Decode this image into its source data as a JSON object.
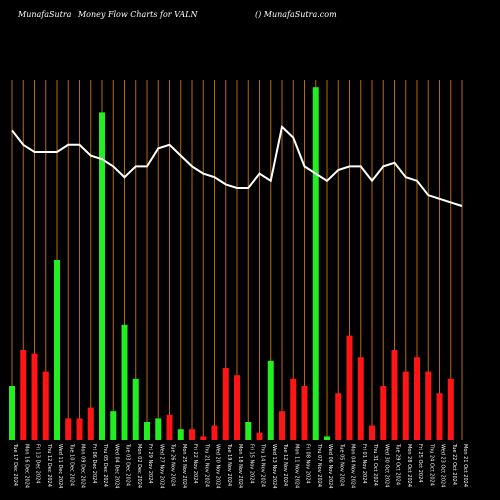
{
  "header": {
    "brand": "MunafaSutra",
    "chart_name": "Money Flow  Charts for VALN",
    "right_text": "() MunafaSutra.com"
  },
  "colors": {
    "background": "#000000",
    "grid": "#b8690a",
    "up": "#22ee22",
    "down": "#ff1515",
    "line": "#ffffff"
  },
  "chart_data": {
    "type": "bar",
    "title": "",
    "xlabel": "",
    "ylabel": "",
    "grid": true,
    "categories": [
      "Tue 17 Dec",
      "Mon 16 Dec",
      "Fri 13 Dec",
      "Thu 12 Dec",
      "Wed 11 Dec",
      "Tue 10 Dec",
      "Mon 09 Dec",
      "Fri 06 Dec",
      "Thu 05 Dec",
      "Wed 04 Dec",
      "Tue 03 Dec",
      "Mon 02 Dec",
      "Fri 29 Nov",
      "Wed 27 Nov",
      "Tue 26 Nov",
      "Mon 25 Nov",
      "Fri 22 Nov",
      "Thu 21 Nov",
      "Wed 20 Nov",
      "Tue 19 Nov",
      "Mon 18 Nov",
      "Fri 15 Nov",
      "Thu 14 Nov",
      "Wed 13 Nov",
      "Tue 12 Nov",
      "Mon 11 Nov",
      "Fri 08 Nov",
      "Thu 07 Nov",
      "Wed 06 Nov",
      "Tue 05 Nov",
      "Mon 04 Nov",
      "Fri 01 Nov",
      "Thu 31 Oct",
      "Wed 30 Oct",
      "Tue 29 Oct",
      "Mon 28 Oct",
      "Fri 25 Oct",
      "Thu 24 Oct",
      "Wed 23 Oct",
      "Tue 22 Oct",
      "Mon 21 Oct"
    ],
    "tick_labels": [
      "Tue 17 Dec 2024",
      "Mon 16 Dec 2024",
      "Fri 13 Dec 2024",
      "Thu 12 Dec 2024",
      "Wed 11 Dec 2024",
      "Tue 10 Dec 2024",
      "Mon 09 Dec 2024",
      "Fri 06 Dec 2024",
      "Thu 05 Dec 2024",
      "Wed 04 Dec 2024",
      "Tue 03 Dec 2024",
      "Mon 02 Dec 2024",
      "Fri 29 Nov 2024",
      "Wed 27 Nov 2024",
      "Tue 26 Nov 2024",
      "Mon 25 Nov 2024",
      "Fri 22 Nov 2024",
      "Thu 21 Nov 2024",
      "Wed 20 Nov 2024",
      "Tue 19 Nov 2024",
      "Mon 18 Nov 2024",
      "Fri 15 Nov 2024",
      "Thu 14 Nov 2024",
      "Wed 13 Nov 2024",
      "Tue 12 Nov 2024",
      "Mon 11 Nov 2024",
      "Fri 08 Nov 2024",
      "Thu 07 Nov 2024",
      "Wed 06 Nov 2024",
      "Tue 05 Nov 2024",
      "Mon 04 Nov 2024",
      "Fri 01 Nov 2024",
      "Thu 31 Oct 2024",
      "Wed 30 Oct 2024",
      "Tue 29 Oct 2024",
      "Mon 28 Oct 2024",
      "Fri 25 Oct 2024",
      "Thu 24 Oct 2024",
      "Wed 23 Oct 2024",
      "Tue 22 Oct 2024",
      "Mon 21 Oct 2024"
    ],
    "series": [
      {
        "kind": "bar",
        "values": [
          15,
          25,
          24,
          19,
          50,
          6,
          6,
          9,
          91,
          8,
          32,
          17,
          5,
          6,
          7,
          3,
          3,
          1,
          4,
          20,
          18,
          5,
          2,
          22,
          8,
          17,
          15,
          98,
          1,
          13,
          29,
          23,
          4,
          15,
          25,
          19,
          23,
          19,
          13,
          17,
          0
        ],
        "colors": [
          "up",
          "down",
          "down",
          "down",
          "up",
          "down",
          "down",
          "down",
          "up",
          "up",
          "up",
          "up",
          "up",
          "up",
          "down",
          "up",
          "down",
          "down",
          "down",
          "down",
          "down",
          "up",
          "down",
          "up",
          "down",
          "down",
          "down",
          "up",
          "up",
          "down",
          "down",
          "down",
          "down",
          "down",
          "down",
          "down",
          "down",
          "down",
          "down",
          "down",
          "down"
        ]
      },
      {
        "kind": "line",
        "values": [
          86,
          82,
          80,
          80,
          80,
          82,
          82,
          79,
          78,
          76,
          73,
          76,
          76,
          81,
          82,
          79,
          76,
          74,
          73,
          71,
          70,
          70,
          74,
          72,
          87,
          84,
          76,
          74,
          72,
          75,
          76,
          76,
          72,
          76,
          77,
          73,
          72,
          68,
          67,
          66,
          65
        ]
      }
    ],
    "ylim": [
      0,
      100
    ]
  }
}
